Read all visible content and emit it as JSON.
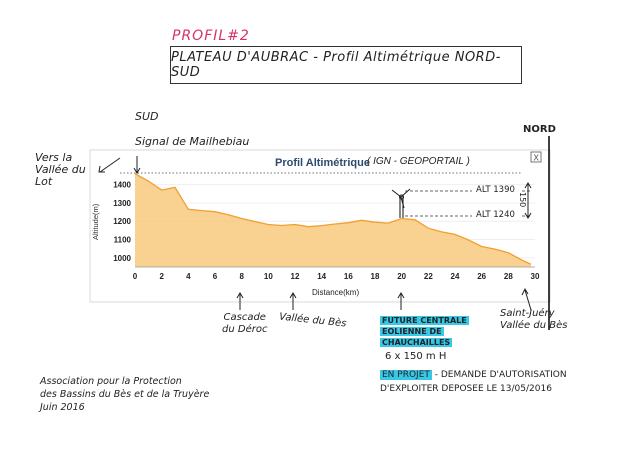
{
  "header": {
    "profil_tag": "PROFIL#2",
    "title": "PLATEAU D'AUBRAC - Profil Altimétrique NORD-SUD"
  },
  "chart_data": {
    "type": "area",
    "title": "Profil Altimétrique",
    "title_annotation": "( IGN - GEOPORTAIL )",
    "xlabel": "Distance(km)",
    "ylabel": "Altitude(m)",
    "xlim": [
      0,
      30
    ],
    "ylim": [
      950,
      1480
    ],
    "x_ticks": [
      "0",
      "2",
      "4",
      "6",
      "8",
      "10",
      "12",
      "14",
      "16",
      "18",
      "20",
      "22",
      "24",
      "26",
      "28",
      "30"
    ],
    "y_ticks": [
      "1000",
      "1100",
      "1200",
      "1300",
      "1400"
    ],
    "close_label": "X",
    "series": [
      {
        "x": [
          0,
          1,
          2,
          3,
          4,
          5,
          6,
          7,
          8,
          9,
          10,
          11,
          12,
          13,
          14,
          15,
          16,
          17,
          18,
          19,
          20,
          21,
          22,
          23,
          24,
          25,
          26,
          27,
          28,
          29,
          29.7
        ],
        "y": [
          1460,
          1420,
          1370,
          1385,
          1265,
          1258,
          1252,
          1235,
          1215,
          1198,
          1182,
          1177,
          1182,
          1170,
          1176,
          1185,
          1192,
          1205,
          1195,
          1190,
          1215,
          1208,
          1162,
          1142,
          1128,
          1098,
          1062,
          1048,
          1028,
          988,
          965
        ]
      }
    ],
    "color_fill": "#f8c97d",
    "color_line": "#f0a030"
  },
  "annotations": {
    "sud": "SUD",
    "nord": "NORD",
    "signal": "Signal de Mailhebiau",
    "vers_lot": [
      "Vers la",
      "Vallée du",
      "Lot"
    ],
    "alt1390": "ALT 1390",
    "alt1240": "ALT 1240",
    "height150": "150",
    "cascade": [
      "Cascade",
      "du Déroc"
    ],
    "vallee_bes": "Vallée du Bès",
    "centrale": [
      "FUTURE CENTRALE",
      "EOLIENNE DE",
      "CHAUCHAILLES"
    ],
    "turbines": "6 x 150 m H",
    "projet_hl": "EN PROJET",
    "projet_rest": "- DEMANDE D'AUTORISATION",
    "projet_line2": "D'EXPLOITER DEPOSEE LE 13/05/2016",
    "saint_juery": [
      "Saint-Juéry",
      "Vallée du Bès"
    ],
    "association": [
      "Association pour la Protection",
      "des Bassins du Bès et de la Truyère",
      "Juin 2016"
    ]
  }
}
